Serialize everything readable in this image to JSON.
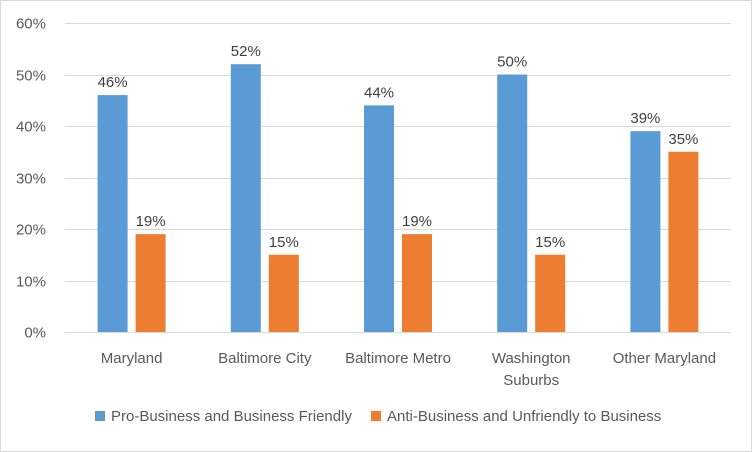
{
  "chart_data": {
    "type": "bar",
    "categories": [
      [
        "Maryland"
      ],
      [
        "Baltimore City"
      ],
      [
        "Baltimore Metro"
      ],
      [
        "Washington",
        "Suburbs"
      ],
      [
        "Other Maryland"
      ]
    ],
    "series": [
      {
        "name": "Pro-Business and Business Friendly",
        "values": [
          46,
          52,
          44,
          50,
          39
        ],
        "labels": [
          "46%",
          "52%",
          "44%",
          "50%",
          "39%"
        ],
        "color": "#5b9bd5"
      },
      {
        "name": "Anti-Business and Unfriendly to Business",
        "values": [
          19,
          15,
          19,
          15,
          35
        ],
        "labels": [
          "19%",
          "15%",
          "19%",
          "15%",
          "35%"
        ],
        "color": "#ed7d31"
      }
    ],
    "ylim": [
      0,
      60
    ],
    "yticks": [
      0,
      10,
      20,
      30,
      40,
      50,
      60
    ],
    "ytick_labels": [
      "0%",
      "10%",
      "20%",
      "30%",
      "40%",
      "50%",
      "60%"
    ],
    "gridlines": true,
    "legend_position": "bottom"
  }
}
